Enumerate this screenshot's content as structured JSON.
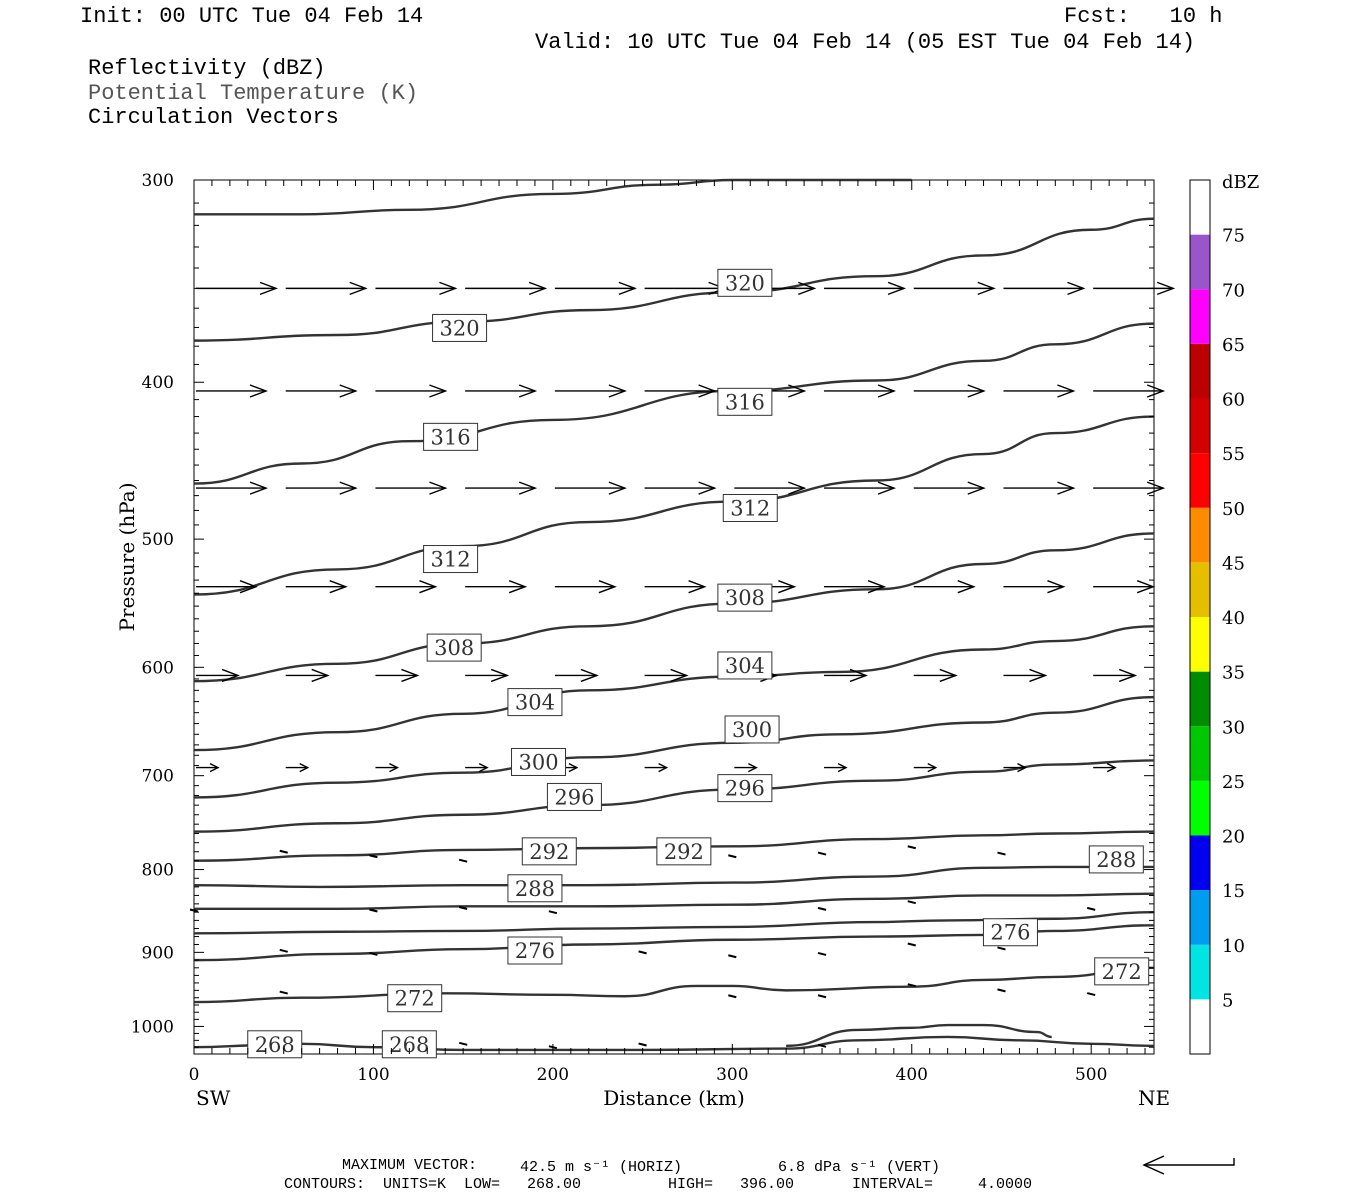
{
  "header": {
    "init": "Init: 00 UTC Tue 04 Feb 14",
    "fcst": "Fcst:   10 h",
    "valid": "Valid: 10 UTC Tue 04 Feb 14 (05 EST Tue 04 Feb 14)",
    "fields": [
      "Reflectivity (dBZ)",
      "Potential Temperature (K)",
      "Circulation Vectors"
    ]
  },
  "footer": {
    "max_vector_label": "MAXIMUM VECTOR:",
    "max_vector_horiz": "42.5 m s⁻¹ (HORIZ)",
    "max_vector_vert": "6.8 dPa s⁻¹ (VERT)",
    "contours": "CONTOURS:  UNITS=K  LOW=   268.00",
    "high": "HIGH=   396.00",
    "interval": "INTERVAL=     4.0000"
  },
  "colorbar": {
    "unit": "dBZ",
    "levels": [
      "5",
      "10",
      "15",
      "20",
      "25",
      "30",
      "35",
      "40",
      "45",
      "50",
      "55",
      "60",
      "65",
      "70",
      "75"
    ],
    "colors": [
      "#ffffff",
      "#00e4e4",
      "#009cf0",
      "#0000f0",
      "#00ff00",
      "#00c800",
      "#008c00",
      "#ffff00",
      "#e6be00",
      "#ff8c00",
      "#ff0000",
      "#d40000",
      "#bc0000",
      "#ff00ff",
      "#9955c9",
      "#ffffff"
    ]
  },
  "chart_data": {
    "type": "line",
    "title": "",
    "xlabel": "Distance (km)",
    "ylabel": "Pressure (hPa)",
    "xlim": [
      0,
      535
    ],
    "ylim": [
      1040,
      300
    ],
    "y_scale": "log",
    "x_ticks": [
      "0",
      "100",
      "200",
      "300",
      "400",
      "500"
    ],
    "y_ticks": [
      "300",
      "400",
      "500",
      "600",
      "700",
      "800",
      "900",
      "1000"
    ],
    "x_end_labels": {
      "left": "SW",
      "right": "NE"
    },
    "contour_labels": [
      {
        "label": "320",
        "x": 148,
        "p": 370
      },
      {
        "label": "320",
        "x": 307,
        "p": 347
      },
      {
        "label": "316",
        "x": 143,
        "p": 432
      },
      {
        "label": "316",
        "x": 307,
        "p": 411
      },
      {
        "label": "312",
        "x": 310,
        "p": 478
      },
      {
        "label": "312",
        "x": 143,
        "p": 514
      },
      {
        "label": "308",
        "x": 307,
        "p": 543
      },
      {
        "label": "308",
        "x": 145,
        "p": 583
      },
      {
        "label": "304",
        "x": 307,
        "p": 598
      },
      {
        "label": "304",
        "x": 190,
        "p": 630
      },
      {
        "label": "300",
        "x": 311,
        "p": 655
      },
      {
        "label": "300",
        "x": 192,
        "p": 686
      },
      {
        "label": "296",
        "x": 307,
        "p": 712
      },
      {
        "label": "296",
        "x": 212,
        "p": 721
      },
      {
        "label": "292",
        "x": 198,
        "p": 779
      },
      {
        "label": "292",
        "x": 273,
        "p": 779
      },
      {
        "label": "288",
        "x": 190,
        "p": 821
      },
      {
        "label": "288",
        "x": 514,
        "p": 788
      },
      {
        "label": "276",
        "x": 455,
        "p": 874
      },
      {
        "label": "276",
        "x": 190,
        "p": 897
      },
      {
        "label": "272",
        "x": 517,
        "p": 924
      },
      {
        "label": "272",
        "x": 123,
        "p": 960
      },
      {
        "label": "268",
        "x": 45,
        "p": 1025
      },
      {
        "label": "268",
        "x": 120,
        "p": 1025
      }
    ],
    "series": [
      {
        "values": [
          [
            0,
            315
          ],
          [
            60,
            315
          ],
          [
            120,
            313
          ],
          [
            200,
            306
          ],
          [
            260,
            302
          ],
          [
            300,
            300
          ],
          [
            360,
            300
          ],
          [
            400,
            300
          ]
        ]
      },
      {
        "values": [
          [
            0,
            377
          ],
          [
            80,
            374
          ],
          [
            150,
            367
          ],
          [
            220,
            361
          ],
          [
            300,
            352
          ],
          [
            380,
            344
          ],
          [
            440,
            334
          ],
          [
            500,
            322
          ],
          [
            535,
            317
          ]
        ]
      },
      {
        "values": [
          [
            0,
            462
          ],
          [
            60,
            449
          ],
          [
            120,
            435
          ],
          [
            200,
            422
          ],
          [
            300,
            405
          ],
          [
            380,
            399
          ],
          [
            440,
            388
          ],
          [
            480,
            379
          ],
          [
            535,
            368
          ]
        ]
      },
      {
        "values": [
          [
            0,
            541
          ],
          [
            80,
            522
          ],
          [
            150,
            505
          ],
          [
            220,
            488
          ],
          [
            300,
            474
          ],
          [
            380,
            460
          ],
          [
            440,
            443
          ],
          [
            480,
            430
          ],
          [
            535,
            420
          ]
        ]
      },
      {
        "values": [
          [
            0,
            612
          ],
          [
            80,
            597
          ],
          [
            150,
            580
          ],
          [
            220,
            566
          ],
          [
            300,
            548
          ],
          [
            380,
            537
          ],
          [
            440,
            518
          ],
          [
            480,
            508
          ],
          [
            535,
            496
          ]
        ]
      },
      {
        "values": [
          [
            0,
            675
          ],
          [
            80,
            658
          ],
          [
            150,
            641
          ],
          [
            220,
            620
          ],
          [
            300,
            608
          ],
          [
            360,
            604
          ],
          [
            440,
            585
          ],
          [
            480,
            578
          ],
          [
            535,
            566
          ]
        ]
      },
      {
        "values": [
          [
            0,
            722
          ],
          [
            80,
            707
          ],
          [
            150,
            697
          ],
          [
            220,
            682
          ],
          [
            300,
            668
          ],
          [
            360,
            660
          ],
          [
            440,
            649
          ],
          [
            480,
            640
          ],
          [
            535,
            626
          ]
        ]
      },
      {
        "values": [
          [
            0,
            758
          ],
          [
            80,
            749
          ],
          [
            150,
            740
          ],
          [
            220,
            730
          ],
          [
            300,
            714
          ],
          [
            380,
            705
          ],
          [
            440,
            696
          ],
          [
            480,
            689
          ],
          [
            535,
            685
          ]
        ]
      },
      {
        "values": [
          [
            0,
            790
          ],
          [
            80,
            784
          ],
          [
            150,
            778
          ],
          [
            220,
            776
          ],
          [
            300,
            774
          ],
          [
            380,
            766
          ],
          [
            440,
            762
          ],
          [
            480,
            760
          ],
          [
            535,
            758
          ]
        ]
      },
      {
        "values": [
          [
            0,
            818
          ],
          [
            70,
            820
          ],
          [
            150,
            818
          ],
          [
            220,
            818
          ],
          [
            300,
            815
          ],
          [
            380,
            808
          ],
          [
            440,
            798
          ],
          [
            480,
            797
          ],
          [
            535,
            797
          ]
        ]
      },
      {
        "values": [
          [
            0,
            846
          ],
          [
            80,
            846
          ],
          [
            150,
            843
          ],
          [
            220,
            843
          ],
          [
            300,
            841
          ],
          [
            380,
            834
          ],
          [
            440,
            830
          ],
          [
            480,
            830
          ],
          [
            535,
            828
          ]
        ]
      },
      {
        "values": [
          [
            0,
            876
          ],
          [
            80,
            874
          ],
          [
            150,
            873
          ],
          [
            220,
            870
          ],
          [
            300,
            868
          ],
          [
            380,
            862
          ],
          [
            420,
            860
          ],
          [
            480,
            858
          ],
          [
            535,
            850
          ]
        ]
      },
      {
        "values": [
          [
            0,
            910
          ],
          [
            80,
            902
          ],
          [
            150,
            896
          ],
          [
            220,
            890
          ],
          [
            300,
            884
          ],
          [
            380,
            880
          ],
          [
            440,
            878
          ],
          [
            480,
            873
          ],
          [
            535,
            866
          ]
        ]
      },
      {
        "values": [
          [
            0,
            966
          ],
          [
            60,
            960
          ],
          [
            140,
            954
          ],
          [
            200,
            956
          ],
          [
            240,
            958
          ],
          [
            280,
            944
          ],
          [
            300,
            944
          ],
          [
            330,
            950
          ],
          [
            400,
            945
          ],
          [
            440,
            936
          ],
          [
            480,
            932
          ],
          [
            535,
            920
          ]
        ]
      },
      {
        "values": [
          [
            0,
            1030
          ],
          [
            40,
            1027
          ],
          [
            60,
            1025
          ],
          [
            100,
            1030
          ],
          [
            150,
            1034
          ],
          [
            250,
            1034
          ],
          [
            330,
            1032
          ],
          [
            370,
            1020
          ],
          [
            420,
            1015
          ],
          [
            460,
            1020
          ],
          [
            500,
            1025
          ],
          [
            535,
            1028
          ]
        ]
      },
      {
        "values": [
          [
            330,
            1028
          ],
          [
            370,
            1005
          ],
          [
            400,
            1002
          ],
          [
            420,
            998
          ],
          [
            440,
            998
          ],
          [
            470,
            1008
          ],
          [
            478,
            1015
          ]
        ]
      }
    ],
    "vectors": [
      {
        "p": 350,
        "x": [
          0,
          50,
          100,
          150,
          200,
          250,
          300,
          350,
          400,
          450,
          500
        ]
      },
      {
        "p": 405,
        "x": [
          0,
          50,
          100,
          150,
          200,
          250,
          300,
          350,
          400,
          450,
          500
        ]
      },
      {
        "p": 465,
        "x": [
          0,
          50,
          100,
          150,
          200,
          250,
          300,
          350,
          400,
          450,
          500
        ]
      },
      {
        "p": 535,
        "x": [
          0,
          50,
          100,
          150,
          200,
          250,
          300,
          350,
          400,
          450,
          500
        ]
      },
      {
        "p": 607,
        "x": [
          0,
          50,
          100,
          150,
          200,
          250,
          300,
          350,
          400,
          450,
          500
        ]
      },
      {
        "p": 692,
        "x": [
          0,
          50,
          100,
          150,
          200,
          250,
          300,
          350,
          400,
          450,
          500
        ]
      }
    ]
  }
}
